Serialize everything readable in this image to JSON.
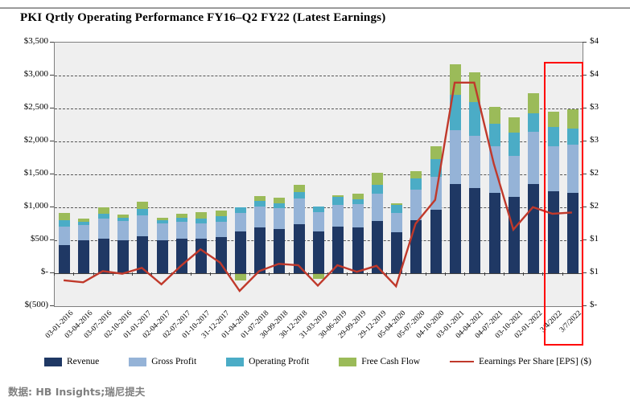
{
  "title": "PKI Qrtly Operating Performance FY16–Q2 FY22 (Latest Earnings)",
  "footer": {
    "source_text": "数据: HB Insights;瑞尼提夫"
  },
  "colors": {
    "revenue": "#1F3864",
    "gross_profit": "#95B3D7",
    "operating_profit": "#4BACC6",
    "free_cash_flow": "#9BBB59",
    "eps_line": "#C0392B",
    "highlight_box": "#FF0000",
    "plot_background": "#EFEFEF"
  },
  "chart_data": {
    "type": "bar",
    "subtype": "stacked-bars-with-line-overlay",
    "title": "PKI Qrtly Operating Performance FY16–Q2 FY22 (Latest Earnings)",
    "categories": [
      "03-01-2016",
      "03-04-2016",
      "03-07-2016",
      "02-10-2016",
      "01-01-2017",
      "02-04-2017",
      "02-07-2017",
      "01-10-2017",
      "31-12-2017",
      "01-04-2018",
      "01-07-2018",
      "30-09-2018",
      "30-12-2018",
      "31-03-2019",
      "30-06-2019",
      "29-09-2019",
      "29-12-2019",
      "05-04-2020",
      "05-07-2020",
      "04-10-2020",
      "03-01-2021",
      "04-04-2021",
      "04-07-2021",
      "03-10-2021",
      "02-01-2022",
      "3/4/2022",
      "3/7/2022"
    ],
    "series": [
      {
        "name": "Revenue",
        "color": "#1F3864",
        "values": [
          430,
          500,
          530,
          505,
          560,
          500,
          520,
          525,
          550,
          635,
          695,
          670,
          745,
          635,
          705,
          695,
          795,
          625,
          805,
          960,
          1355,
          1295,
          1220,
          1160,
          1355,
          1245,
          1220
        ]
      },
      {
        "name": "Gross Profit",
        "color": "#95B3D7",
        "values": [
          280,
          230,
          300,
          285,
          320,
          255,
          265,
          230,
          230,
          280,
          320,
          320,
          390,
          295,
          330,
          350,
          410,
          290,
          460,
          500,
          815,
          785,
          710,
          620,
          790,
          685,
          730
        ]
      },
      {
        "name": "Operating Profit",
        "color": "#4BACC6",
        "values": [
          90,
          55,
          75,
          50,
          90,
          50,
          55,
          75,
          80,
          85,
          85,
          75,
          100,
          85,
          120,
          80,
          135,
          120,
          170,
          270,
          535,
          520,
          340,
          355,
          280,
          290,
          245
        ]
      },
      {
        "name": "Free Cash Flow",
        "color": "#9BBB59",
        "values": [
          110,
          45,
          95,
          45,
          110,
          40,
          60,
          100,
          90,
          -100,
          70,
          85,
          110,
          -75,
          30,
          80,
          185,
          25,
          115,
          195,
          465,
          450,
          255,
          230,
          305,
          230,
          290
        ]
      }
    ],
    "line_series": {
      "name": "Eearnings Per Share [EPS] ($)",
      "color": "#C0392B",
      "axis": "right",
      "values": [
        0.38,
        0.35,
        0.52,
        0.48,
        0.57,
        0.32,
        0.6,
        0.85,
        0.65,
        0.22,
        0.52,
        0.63,
        0.61,
        0.3,
        0.61,
        0.51,
        0.6,
        0.29,
        1.24,
        1.6,
        3.38,
        3.38,
        2.15,
        1.15,
        1.49,
        1.39,
        1.41
      ]
    },
    "left_axis": {
      "min": -500,
      "max": 3500,
      "step": 500,
      "tick_labels_top_to_bottom": [
        "$3,500",
        "$3,000",
        "$2,500",
        "$2,000",
        "$1,500",
        "$1,000",
        "$500",
        "$-",
        "$(500)"
      ]
    },
    "right_axis": {
      "min": 0,
      "max": 4,
      "step": 0.5,
      "tick_labels_top_to_bottom": [
        "$4",
        "$4",
        "$3",
        "$3",
        "$2",
        "$2",
        "$1",
        "$1",
        "$-"
      ]
    },
    "gridlines": "horizontal dashed at every 500 of left axis, solid line at zero",
    "legend_position": "bottom",
    "highlight_box": {
      "from_category": "3/4/2022",
      "to_category": "3/7/2022",
      "color": "#FF0000"
    }
  }
}
